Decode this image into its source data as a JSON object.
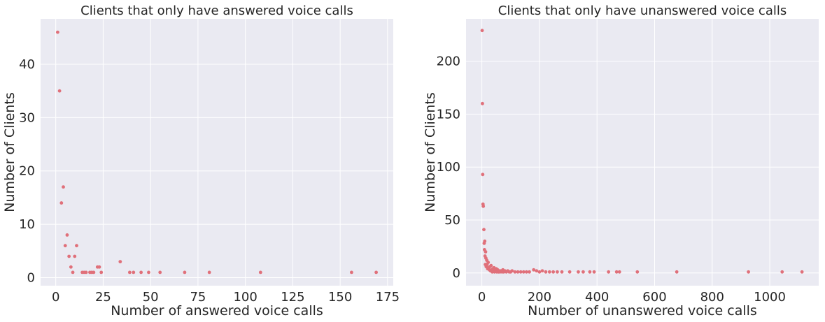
{
  "chart_data": [
    {
      "type": "scatter",
      "title": "Clients that only have answered voice calls",
      "xlabel": "Number of answered voice calls",
      "ylabel": "Number of Clients",
      "xlim": [
        -8,
        178
      ],
      "ylim": [
        -1.5,
        48.5
      ],
      "xticks": [
        0,
        25,
        50,
        75,
        100,
        125,
        150,
        175
      ],
      "yticks": [
        0,
        10,
        20,
        30,
        40
      ],
      "grid": true,
      "point_color": "#e0707a",
      "points": [
        [
          1,
          46
        ],
        [
          2,
          35
        ],
        [
          3,
          14
        ],
        [
          4,
          17
        ],
        [
          5,
          6
        ],
        [
          6,
          8
        ],
        [
          7,
          4
        ],
        [
          8,
          2
        ],
        [
          9,
          1
        ],
        [
          10,
          4
        ],
        [
          11,
          6
        ],
        [
          14,
          1
        ],
        [
          15,
          1
        ],
        [
          16,
          1
        ],
        [
          18,
          1
        ],
        [
          19,
          1
        ],
        [
          20,
          1
        ],
        [
          22,
          2
        ],
        [
          23,
          2
        ],
        [
          24,
          1
        ],
        [
          34,
          3
        ],
        [
          39,
          1
        ],
        [
          41,
          1
        ],
        [
          45,
          1
        ],
        [
          49,
          1
        ],
        [
          55,
          1
        ],
        [
          68,
          1
        ],
        [
          81,
          1
        ],
        [
          108,
          1
        ],
        [
          156,
          1
        ],
        [
          169,
          1
        ]
      ]
    },
    {
      "type": "scatter",
      "title": "Clients that only have unanswered voice calls",
      "xlabel": "Number of unanswered voice calls",
      "ylabel": "Number of Clients",
      "xlim": [
        -55,
        1170
      ],
      "ylim": [
        -12,
        240
      ],
      "xticks": [
        0,
        200,
        400,
        600,
        800,
        1000
      ],
      "yticks": [
        0,
        50,
        100,
        150,
        200
      ],
      "grid": true,
      "point_color": "#e0707a",
      "points": [
        [
          1,
          229
        ],
        [
          2,
          160
        ],
        [
          3,
          93
        ],
        [
          4,
          65
        ],
        [
          5,
          63
        ],
        [
          7,
          41
        ],
        [
          8,
          28
        ],
        [
          9,
          22
        ],
        [
          10,
          30
        ],
        [
          11,
          16
        ],
        [
          12,
          8
        ],
        [
          13,
          20
        ],
        [
          14,
          14
        ],
        [
          15,
          6
        ],
        [
          17,
          12
        ],
        [
          18,
          8
        ],
        [
          20,
          4
        ],
        [
          22,
          10
        ],
        [
          24,
          5
        ],
        [
          26,
          3
        ],
        [
          28,
          6
        ],
        [
          30,
          2
        ],
        [
          32,
          7
        ],
        [
          34,
          3
        ],
        [
          36,
          1
        ],
        [
          38,
          4
        ],
        [
          40,
          2
        ],
        [
          42,
          5
        ],
        [
          44,
          1
        ],
        [
          46,
          3
        ],
        [
          48,
          2
        ],
        [
          50,
          4
        ],
        [
          52,
          1
        ],
        [
          55,
          3
        ],
        [
          58,
          1
        ],
        [
          60,
          2
        ],
        [
          63,
          1
        ],
        [
          66,
          2
        ],
        [
          70,
          1
        ],
        [
          73,
          3
        ],
        [
          76,
          1
        ],
        [
          80,
          2
        ],
        [
          85,
          1
        ],
        [
          90,
          2
        ],
        [
          95,
          1
        ],
        [
          100,
          1
        ],
        [
          105,
          2
        ],
        [
          115,
          1
        ],
        [
          125,
          1
        ],
        [
          135,
          1
        ],
        [
          145,
          1
        ],
        [
          155,
          1
        ],
        [
          165,
          1
        ],
        [
          180,
          3
        ],
        [
          190,
          2
        ],
        [
          200,
          1
        ],
        [
          210,
          2
        ],
        [
          222,
          1
        ],
        [
          235,
          1
        ],
        [
          248,
          1
        ],
        [
          262,
          1
        ],
        [
          278,
          1
        ],
        [
          305,
          1
        ],
        [
          335,
          1
        ],
        [
          352,
          1
        ],
        [
          375,
          1
        ],
        [
          390,
          1
        ],
        [
          440,
          1
        ],
        [
          468,
          1
        ],
        [
          478,
          1
        ],
        [
          540,
          1
        ],
        [
          677,
          1
        ],
        [
          926,
          1
        ],
        [
          1043,
          1
        ],
        [
          1112,
          1
        ]
      ]
    }
  ]
}
